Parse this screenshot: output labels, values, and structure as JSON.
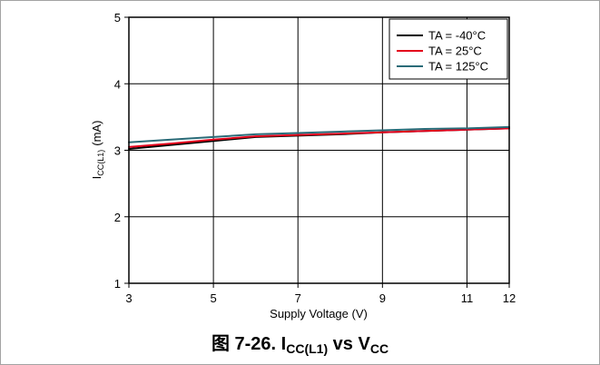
{
  "chart_data": {
    "type": "line",
    "xlabel": "Supply Voltage (V)",
    "ylabel": {
      "symbol": "I",
      "subscript": "CC(L1)",
      "unit": "(mA)"
    },
    "xlim": [
      3,
      12
    ],
    "ylim": [
      1,
      5
    ],
    "x_ticks": [
      3,
      5,
      7,
      9,
      11,
      12
    ],
    "y_ticks": [
      1,
      2,
      3,
      4,
      5
    ],
    "grid": true,
    "legend": "top-right",
    "x": [
      3,
      4,
      5,
      6,
      7,
      8,
      9,
      10,
      11,
      12
    ],
    "series": [
      {
        "name": "TA = -40°C",
        "color": "#000000",
        "values": [
          3.02,
          3.08,
          3.14,
          3.2,
          3.22,
          3.24,
          3.27,
          3.29,
          3.31,
          3.33
        ]
      },
      {
        "name": "TA = 25°C",
        "color": "#e3001b",
        "values": [
          3.05,
          3.1,
          3.16,
          3.21,
          3.23,
          3.25,
          3.27,
          3.29,
          3.31,
          3.33
        ]
      },
      {
        "name": "TA = 125°C",
        "color": "#2a6b78",
        "values": [
          3.12,
          3.16,
          3.2,
          3.24,
          3.26,
          3.28,
          3.3,
          3.32,
          3.33,
          3.35
        ]
      }
    ]
  },
  "figure_caption": {
    "label": "图 7-26.",
    "i": "I",
    "i_sub": "CC(L1)",
    "vs": "vs",
    "v": "V",
    "v_sub": "CC"
  }
}
